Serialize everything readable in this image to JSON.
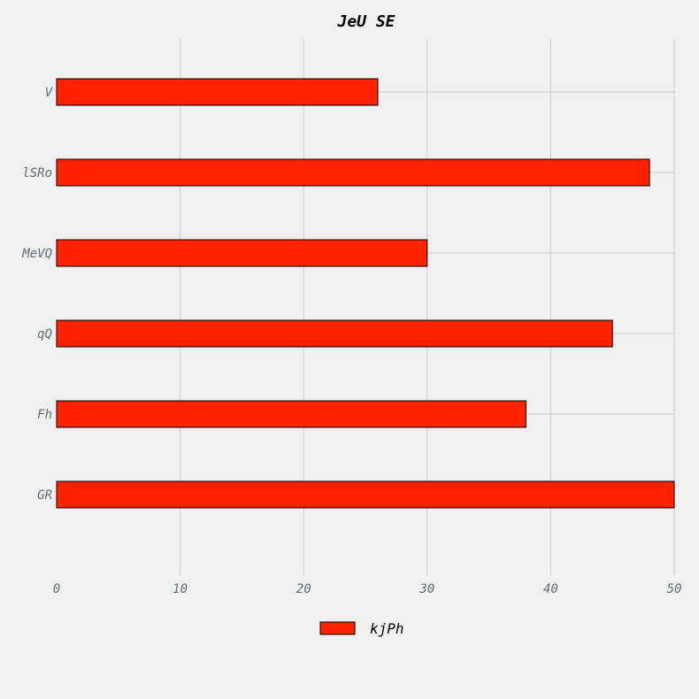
{
  "chart_data": {
    "type": "bar",
    "orientation": "horizontal",
    "title": "JeU SE",
    "xlabel": "",
    "ylabel": "",
    "categories": [
      "V",
      "lSRo",
      "MeVQ",
      "qQ",
      "Fh",
      "GR"
    ],
    "series": [
      {
        "name": "kjPh",
        "values": [
          26,
          48,
          30,
          45,
          38,
          50
        ],
        "color": "#ff2200"
      }
    ],
    "xlim": [
      0,
      50
    ],
    "xticks": [
      "0",
      "10",
      "20",
      "30",
      "40",
      "50"
    ],
    "grid": true,
    "legend": "bottom-center"
  },
  "colors": {
    "background": "#f0f0f0",
    "grid": "#cbcbcb",
    "bar_edge": "#000000",
    "tick_text": "#5a6e78"
  }
}
